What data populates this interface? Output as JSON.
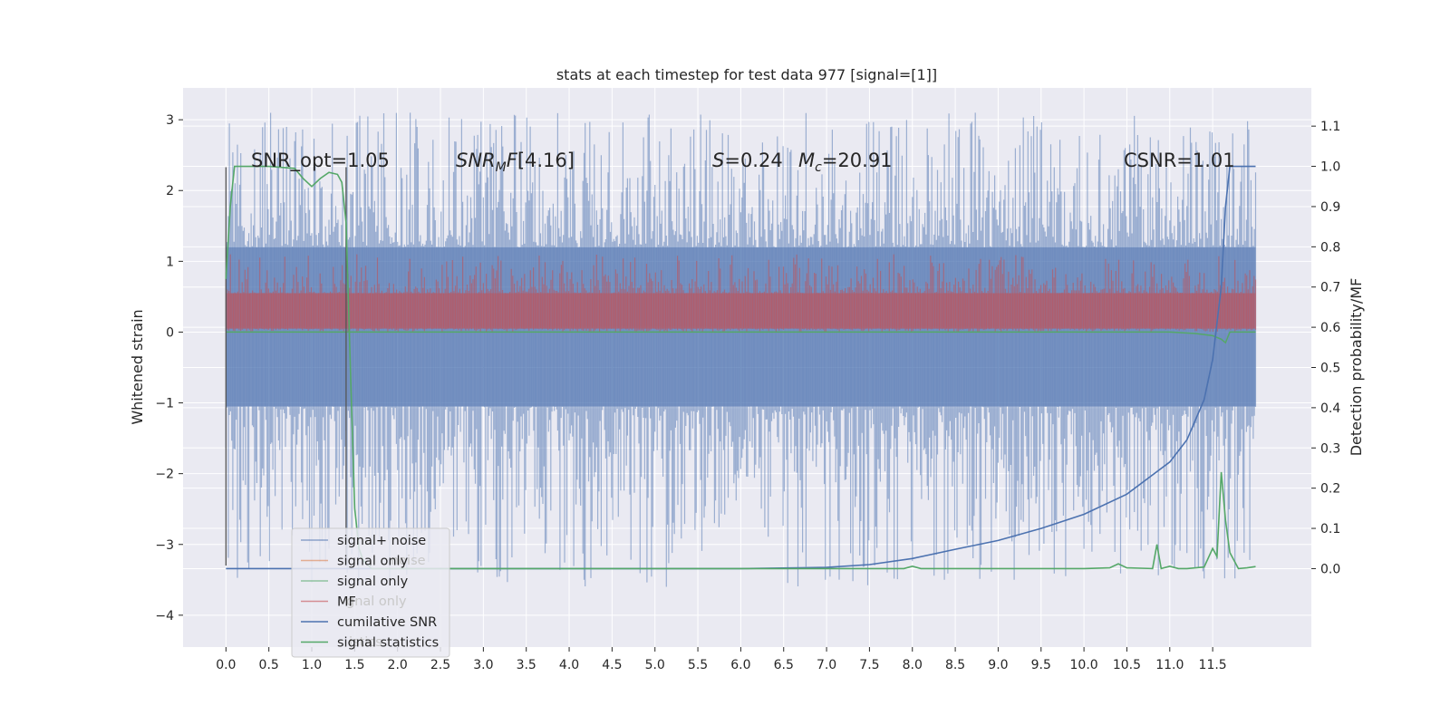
{
  "chart_data": {
    "type": "line",
    "title": "stats at each timestep for test data 977 [signal=[1]]",
    "xlabel": "",
    "ylabel_left": "Whitened strain",
    "ylabel_right": "Detection probability/MF",
    "xlim": [
      -0.5,
      12.65
    ],
    "ylim_left": [
      -4.45,
      3.45
    ],
    "ylim_right": [
      -0.195,
      1.195
    ],
    "x_ticks": [
      "0.0",
      "0.5",
      "1.0",
      "1.5",
      "2.0",
      "2.5",
      "3.0",
      "3.5",
      "4.0",
      "4.5",
      "5.0",
      "5.5",
      "6.0",
      "6.5",
      "7.0",
      "7.5",
      "8.0",
      "8.5",
      "9.0",
      "9.5",
      "10.0",
      "10.5",
      "11.0",
      "11.5"
    ],
    "y_ticks_left": [
      "−4",
      "−3",
      "−2",
      "−1",
      "0",
      "1",
      "2",
      "3"
    ],
    "y_ticks_right": [
      "0.0",
      "0.1",
      "0.2",
      "0.3",
      "0.4",
      "0.5",
      "0.6",
      "0.7",
      "0.8",
      "0.9",
      "1.0",
      "1.1"
    ],
    "grid": true,
    "legend_position": "lower-left",
    "annotations": {
      "snr_opt": "SNR_opt=1.05",
      "snr_mf": "[4.16]",
      "s_val": "=0.24",
      "mc_val": "=20.91",
      "csnr": "CSNR=1.01"
    },
    "series": [
      {
        "name": "signal+ noise",
        "color": "#4c72b0",
        "axis": "left",
        "kind": "noise",
        "x_range": [
          0.0,
          12.0
        ],
        "band_left": [
          -1.05,
          1.2
        ],
        "spike_extent_left": [
          -3.6,
          3.1
        ]
      },
      {
        "name": "signal only",
        "color": "#dd8452",
        "axis": "left",
        "kind": "signal"
      },
      {
        "name": "signal only",
        "color": "#55a868",
        "axis": "left",
        "kind": "signal",
        "x": [
          0.0,
          11.0,
          11.3,
          11.5,
          11.6,
          11.65,
          11.7,
          12.0
        ],
        "y": [
          0.0,
          0.0,
          -0.02,
          -0.05,
          -0.1,
          -0.15,
          0.0,
          0.0
        ]
      },
      {
        "name": "MF",
        "color": "#c44e52",
        "axis": "left",
        "kind": "mf",
        "x_range": [
          0.0,
          12.0
        ],
        "band_left": [
          0.05,
          0.55
        ]
      },
      {
        "name": "cumilative SNR",
        "color": "#4c72b0",
        "axis": "right",
        "x": [
          0.0,
          6.0,
          7.0,
          7.5,
          8.0,
          8.5,
          9.0,
          9.5,
          10.0,
          10.5,
          11.0,
          11.2,
          11.4,
          11.5,
          11.6,
          11.65,
          11.7,
          12.0
        ],
        "y": [
          0.0,
          0.0,
          0.003,
          0.01,
          0.025,
          0.048,
          0.07,
          0.1,
          0.135,
          0.185,
          0.265,
          0.32,
          0.42,
          0.52,
          0.7,
          0.9,
          1.0,
          1.0
        ]
      },
      {
        "name": "signal statistics",
        "color": "#55a868",
        "axis": "right",
        "x": [
          0.0,
          0.05,
          0.1,
          0.2,
          0.5,
          0.8,
          0.9,
          1.0,
          1.1,
          1.2,
          1.3,
          1.35,
          1.4,
          1.45,
          1.5,
          1.55,
          1.6,
          1.7,
          2.0,
          7.9,
          8.0,
          8.1,
          10.0,
          10.3,
          10.4,
          10.5,
          10.8,
          10.85,
          10.9,
          11.0,
          11.1,
          11.2,
          11.4,
          11.5,
          11.55,
          11.6,
          11.65,
          11.7,
          11.8,
          11.9,
          12.0
        ],
        "y": [
          0.72,
          0.9,
          1.0,
          1.0,
          1.0,
          0.995,
          0.97,
          0.95,
          0.97,
          0.985,
          0.98,
          0.96,
          0.86,
          0.5,
          0.15,
          0.05,
          0.02,
          0.0,
          0.0,
          0.0,
          0.006,
          0.0,
          0.0,
          0.002,
          0.012,
          0.002,
          0.0,
          0.06,
          0.0,
          0.006,
          0.0,
          0.0,
          0.004,
          0.05,
          0.03,
          0.24,
          0.12,
          0.04,
          0.0,
          0.002,
          0.005
        ]
      }
    ],
    "vertical_lines": [
      0.0,
      1.4
    ],
    "vertical_line_range_left": [
      -3.3,
      2.33
    ]
  }
}
